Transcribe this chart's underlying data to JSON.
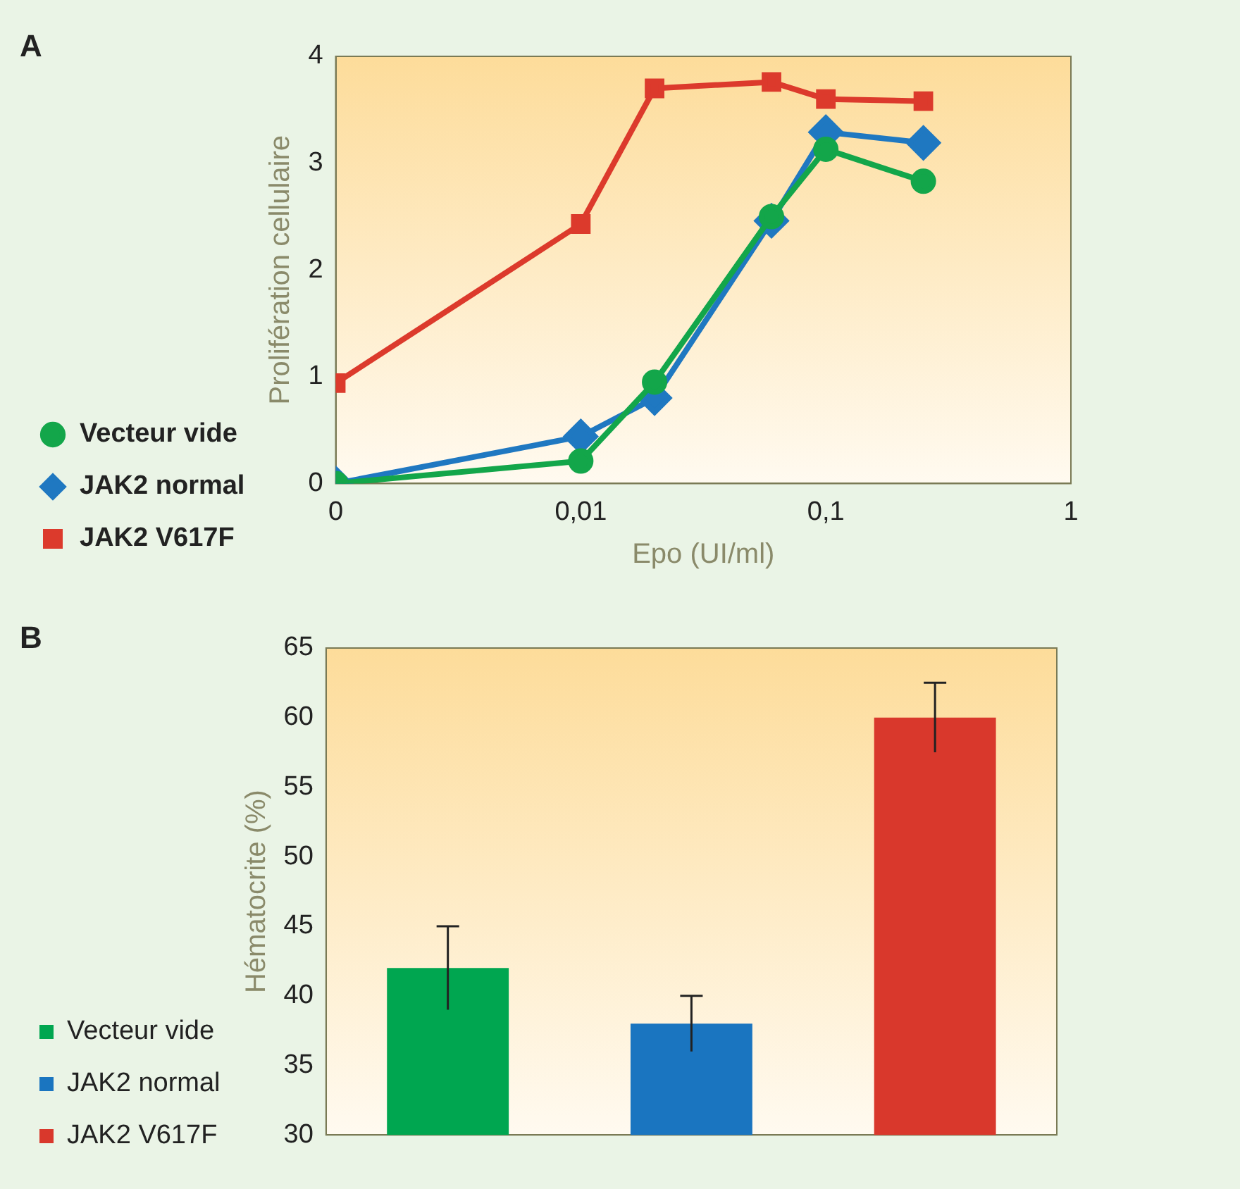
{
  "chart_data": [
    {
      "type": "line",
      "annotations": [
        "A"
      ],
      "ylabel": "Prolifération cellulaire",
      "xlabel": "Epo (UI/ml)",
      "log": "x",
      "xlim": [
        0.001,
        1
      ],
      "xticks": [
        {
          "value": 0.001,
          "label": "0"
        },
        {
          "value": 0.01,
          "label": "0,01"
        },
        {
          "value": 0.1,
          "label": "0,1"
        },
        {
          "value": 1,
          "label": "1"
        }
      ],
      "ylim": [
        0,
        4
      ],
      "yticks": [
        0,
        1,
        2,
        3,
        4
      ],
      "x": [
        0.001,
        0.01,
        0.02,
        0.06,
        0.1,
        0.25
      ],
      "legend": "left",
      "grid": false,
      "series": [
        {
          "name": "Vecteur vide",
          "color": "#13a64a",
          "marker": "circle",
          "values": [
            0,
            0.21,
            0.95,
            2.5,
            3.13,
            2.83
          ]
        },
        {
          "name": "JAK2 normal",
          "color": "#1f78c1",
          "marker": "diamond",
          "values": [
            0,
            0.44,
            0.8,
            2.46,
            3.29,
            3.19
          ]
        },
        {
          "name": "JAK2 V617F",
          "color": "#dc3a2c",
          "marker": "square",
          "values": [
            0.94,
            2.43,
            3.7,
            3.76,
            3.6,
            3.58
          ]
        }
      ]
    },
    {
      "type": "bar",
      "annotations": [
        "B"
      ],
      "ylabel": "Hématocrite (%)",
      "categories": [
        null,
        null,
        null
      ],
      "ylim": [
        30,
        65
      ],
      "yticks": [
        30,
        35,
        40,
        45,
        50,
        55,
        60,
        65
      ],
      "legend": "left",
      "grid": false,
      "series": [
        {
          "name": "Vecteur vide",
          "color": "#00a650",
          "values": [
            42,
            null,
            null
          ],
          "errors": [
            3,
            null,
            null
          ]
        },
        {
          "name": "JAK2 normal",
          "color": "#1a75c0",
          "values": [
            null,
            38,
            null
          ],
          "errors": [
            null,
            2,
            null
          ]
        },
        {
          "name": "JAK2 V617F",
          "color": "#d9382c",
          "values": [
            null,
            null,
            60
          ],
          "errors": [
            null,
            null,
            2.5
          ]
        }
      ]
    }
  ]
}
